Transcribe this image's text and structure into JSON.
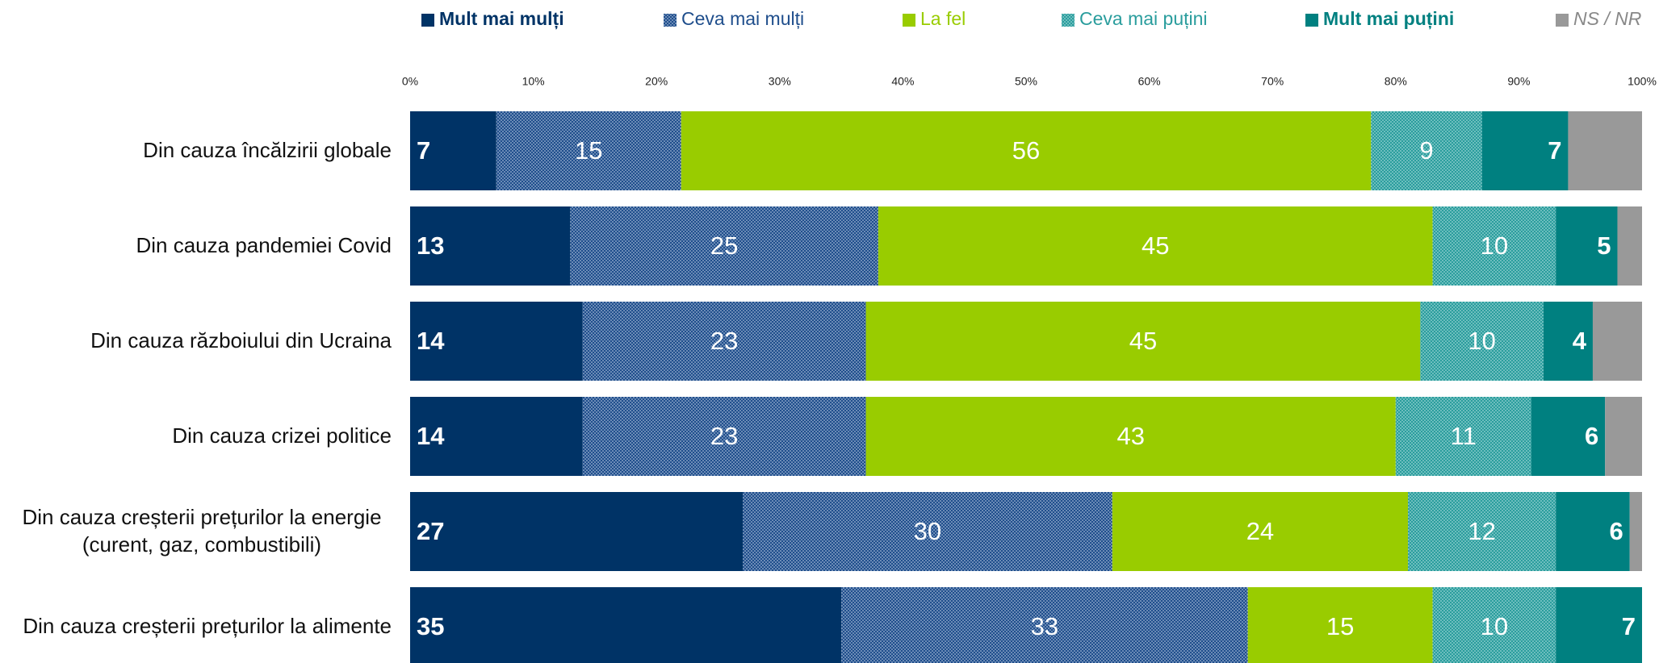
{
  "chart_data": {
    "type": "stacked_bar_horizontal",
    "categories": [
      "Din cauza încălzirii globale",
      "Din cauza pandemiei Covid",
      "Din cauza războiului din Ucraina",
      "Din cauza crizei politice",
      "Din cauza creșterii prețurilor la energie (curent, gaz, combustibili)",
      "Din cauza creșterii prețurilor la alimente"
    ],
    "series": [
      {
        "name": "Mult mai mulți",
        "color": "#003366",
        "pattern": false,
        "values": [
          7,
          13,
          14,
          14,
          27,
          35
        ]
      },
      {
        "name": "Ceva mai mulți",
        "color": "#1f4e8c",
        "pattern": true,
        "values": [
          15,
          25,
          23,
          23,
          30,
          33
        ]
      },
      {
        "name": "La fel",
        "color": "#99cc00",
        "pattern": false,
        "values": [
          56,
          45,
          45,
          43,
          24,
          15
        ]
      },
      {
        "name": "Ceva mai puțini",
        "color": "#2a9d9d",
        "pattern": true,
        "values": [
          9,
          10,
          10,
          11,
          12,
          10
        ]
      },
      {
        "name": "Mult mai puțini",
        "color": "#008080",
        "pattern": false,
        "values": [
          7,
          5,
          4,
          6,
          6,
          7
        ]
      },
      {
        "name": "NS / NR",
        "color": "#999999",
        "pattern": false,
        "values": [
          6,
          2,
          4,
          3,
          1,
          0
        ]
      }
    ],
    "xlim": [
      0,
      100
    ],
    "xticks": [
      {
        "value": 0,
        "label": "0%"
      },
      {
        "value": 10,
        "label": "10%"
      },
      {
        "value": 20,
        "label": "20%"
      },
      {
        "value": 30,
        "label": "30%"
      },
      {
        "value": 40,
        "label": "40%"
      },
      {
        "value": 50,
        "label": "50%"
      },
      {
        "value": 60,
        "label": "60%"
      },
      {
        "value": 70,
        "label": "70%"
      },
      {
        "value": 80,
        "label": "80%"
      },
      {
        "value": 90,
        "label": "90%"
      },
      {
        "value": 100,
        "label": "100%"
      }
    ],
    "legend": "top"
  }
}
